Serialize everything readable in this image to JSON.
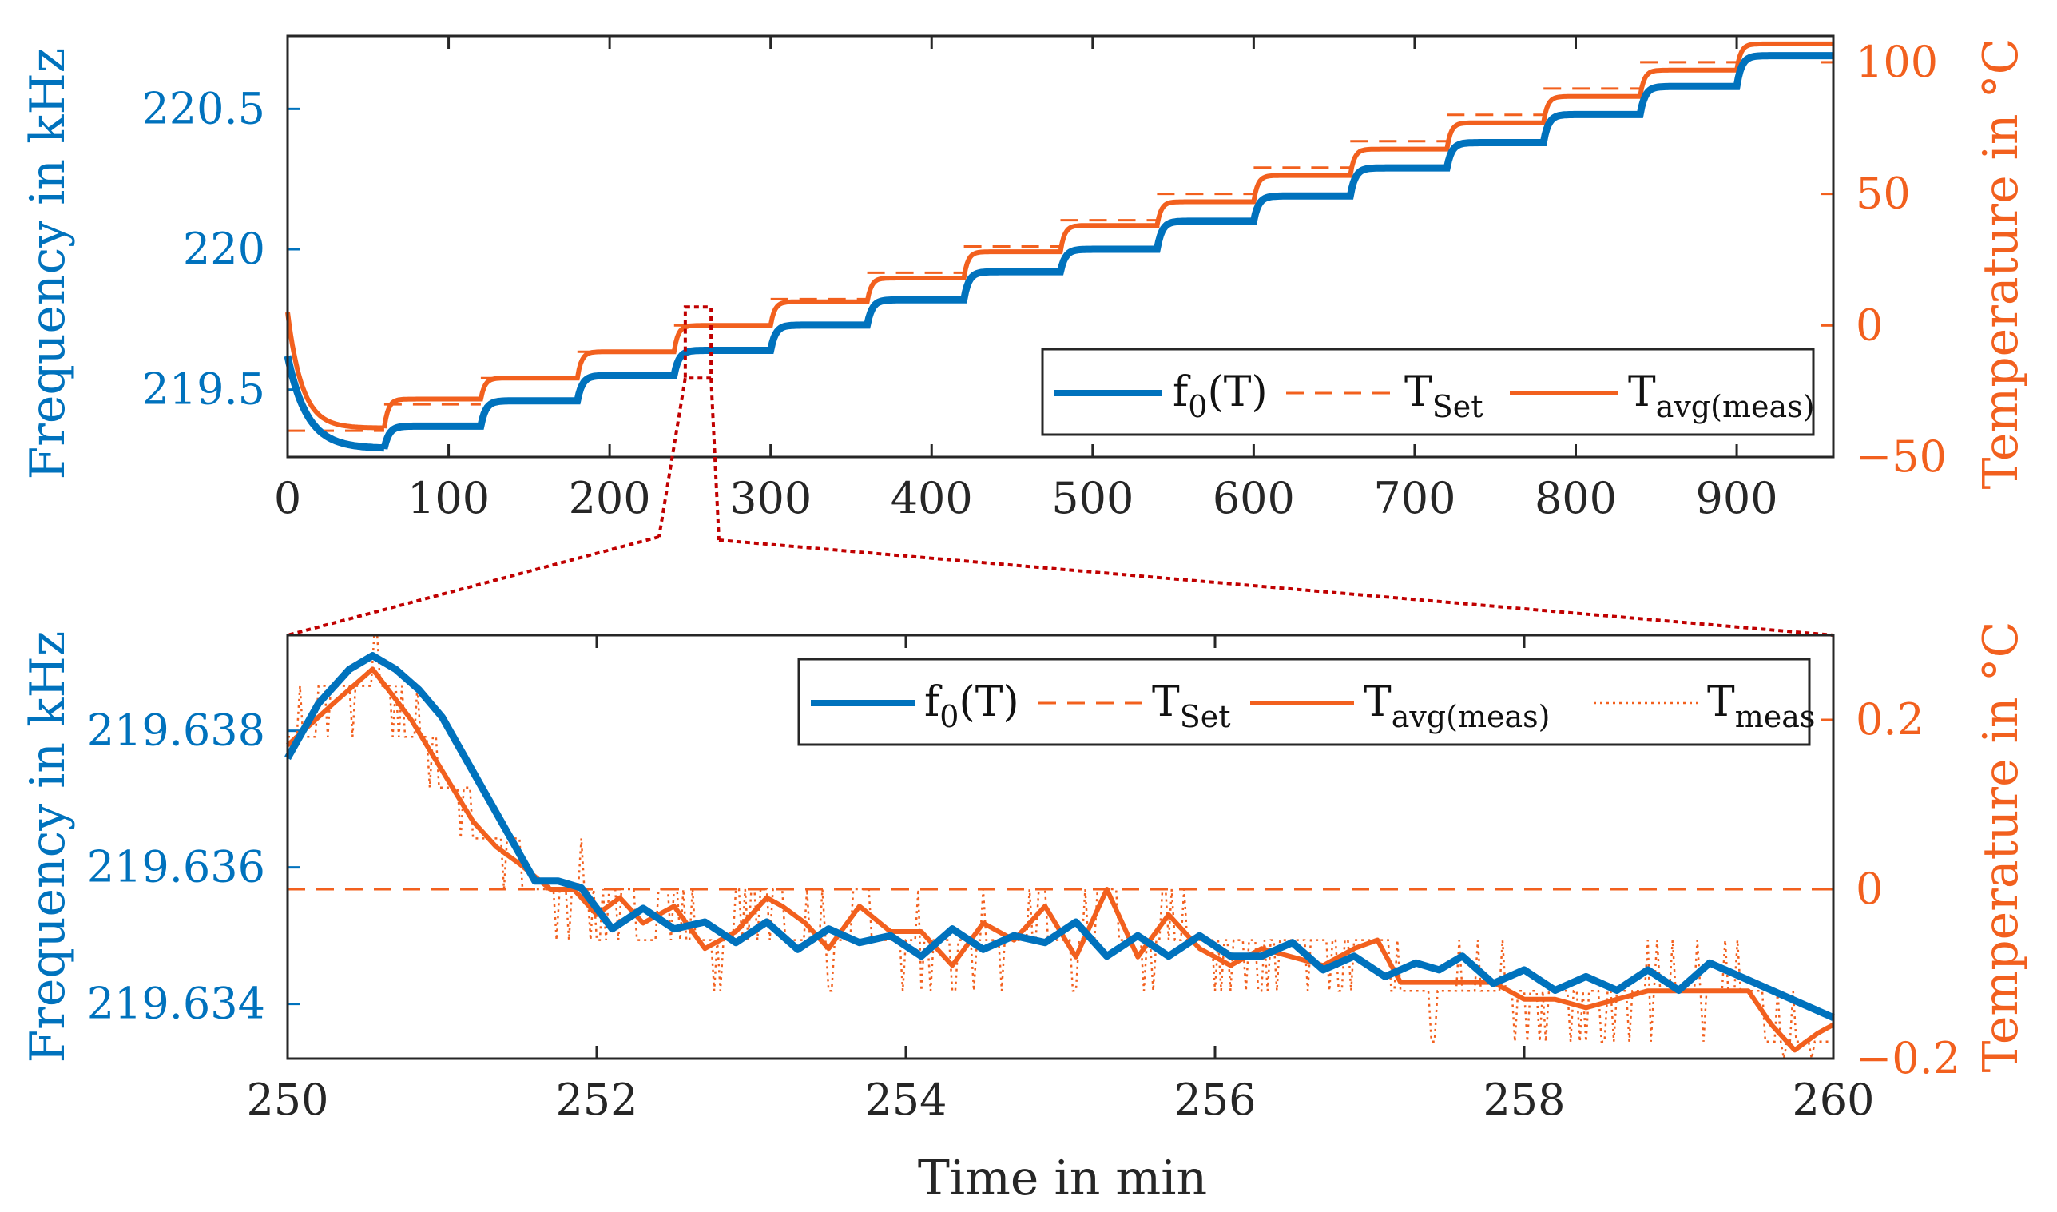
{
  "colors": {
    "freq": "#0072BD",
    "temp": "#F2601E",
    "zoom_box": "#C00000",
    "axis": "#262626"
  },
  "chart_data": [
    {
      "type": "line",
      "title": "",
      "xlabel": "",
      "ylabel": "Frequency in kHz",
      "ylabel_right": "Temperature in °C",
      "xlim": [
        0,
        960
      ],
      "ylim": [
        219.26,
        220.76
      ],
      "ylim_right": [
        -50,
        110
      ],
      "xticks": [
        "0",
        "100",
        "200",
        "300",
        "400",
        "500",
        "600",
        "700",
        "800",
        "900"
      ],
      "yticks": [
        "219.5",
        "220",
        "220.5"
      ],
      "yticks_right": [
        "−50",
        "0",
        "50",
        "100"
      ],
      "legend_position": "bottom-right",
      "legend": {
        "f0": {
          "main": "f",
          "sub": "0",
          "tail": "(T)"
        },
        "tset": {
          "main": "T",
          "sub": "Set"
        },
        "tavg": {
          "main": "T",
          "sub": "avg(meas)"
        }
      },
      "series": [
        {
          "name": "T_Set",
          "axis": "right",
          "style": "dashed",
          "steps_x": [
            0,
            60,
            120,
            180,
            240,
            300,
            360,
            420,
            480,
            540,
            600,
            660,
            720,
            780,
            840,
            900,
            960
          ],
          "steps_y": [
            -40,
            -30,
            -20,
            -10,
            0,
            10,
            20,
            30,
            40,
            50,
            60,
            70,
            80,
            90,
            100,
            110
          ]
        },
        {
          "name": "T_avg(meas)",
          "axis": "right",
          "style": "solid",
          "steps_x": [
            0,
            60,
            120,
            180,
            240,
            300,
            360,
            420,
            480,
            540,
            600,
            660,
            720,
            780,
            840,
            900,
            960
          ],
          "steps_y": [
            -39,
            -28,
            -20,
            -10,
            0,
            9,
            18,
            28,
            38,
            47,
            57,
            67,
            77,
            87,
            97,
            107
          ]
        },
        {
          "name": "f0(T)",
          "axis": "left",
          "style": "solid",
          "steps_x": [
            0,
            60,
            120,
            180,
            240,
            300,
            360,
            420,
            480,
            540,
            600,
            660,
            720,
            780,
            840,
            900,
            960
          ],
          "steps_y": [
            219.29,
            219.37,
            219.46,
            219.55,
            219.64,
            219.73,
            219.82,
            219.92,
            220.0,
            220.1,
            220.19,
            220.29,
            220.38,
            220.48,
            220.58,
            220.69
          ]
        }
      ]
    },
    {
      "type": "line",
      "title": "",
      "xlabel": "Time in min",
      "ylabel": "Frequency in kHz",
      "ylabel_right": "Temperature in °C",
      "xlim": [
        250,
        260
      ],
      "ylim": [
        219.6332,
        219.6394
      ],
      "ylim_right": [
        -0.2,
        0.3
      ],
      "xticks": [
        "250",
        "252",
        "254",
        "256",
        "258",
        "260"
      ],
      "yticks": [
        "219.634",
        "219.636",
        "219.638"
      ],
      "yticks_right": [
        "−0.2",
        "0",
        "0.2"
      ],
      "legend_position": "top-right",
      "legend": {
        "f0": {
          "main": "f",
          "sub": "0",
          "tail": "(T)"
        },
        "tset": {
          "main": "T",
          "sub": "Set"
        },
        "tavg": {
          "main": "T",
          "sub": "avg(meas)"
        },
        "tmeas": {
          "main": "T",
          "sub": "meas"
        }
      },
      "series": [
        {
          "name": "T_Set",
          "axis": "right",
          "style": "dashed",
          "x": [
            250,
            260
          ],
          "y": [
            0,
            0
          ]
        },
        {
          "name": "T_avg(meas)",
          "axis": "right",
          "style": "solid",
          "x": [
            250.0,
            250.3,
            250.55,
            250.8,
            251.0,
            251.2,
            251.35,
            251.5,
            251.7,
            251.85,
            252.0,
            252.15,
            252.3,
            252.5,
            252.7,
            252.9,
            253.1,
            253.2,
            253.35,
            253.5,
            253.7,
            253.9,
            254.1,
            254.3,
            254.5,
            254.7,
            254.9,
            255.1,
            255.3,
            255.5,
            255.7,
            255.9,
            256.1,
            256.3,
            256.5,
            256.7,
            256.9,
            257.05,
            257.2,
            257.5,
            257.8,
            258.0,
            258.2,
            258.4,
            258.6,
            258.8,
            259.0,
            259.2,
            259.45,
            259.6,
            259.75,
            259.9,
            260.0
          ],
          "y": [
            0.17,
            0.22,
            0.26,
            0.2,
            0.14,
            0.08,
            0.05,
            0.03,
            0.0,
            0.0,
            -0.03,
            -0.01,
            -0.04,
            -0.02,
            -0.07,
            -0.05,
            -0.01,
            -0.02,
            -0.04,
            -0.07,
            -0.02,
            -0.05,
            -0.05,
            -0.09,
            -0.04,
            -0.06,
            -0.02,
            -0.08,
            0.0,
            -0.08,
            -0.03,
            -0.07,
            -0.09,
            -0.07,
            -0.08,
            -0.09,
            -0.07,
            -0.06,
            -0.11,
            -0.11,
            -0.11,
            -0.13,
            -0.13,
            -0.14,
            -0.13,
            -0.12,
            -0.12,
            -0.12,
            -0.12,
            -0.16,
            -0.19,
            -0.17,
            -0.16
          ]
        },
        {
          "name": "f0(T)",
          "axis": "left",
          "style": "solid",
          "x": [
            250.0,
            250.2,
            250.4,
            250.55,
            250.7,
            250.85,
            251.0,
            251.15,
            251.3,
            251.45,
            251.6,
            251.75,
            251.9,
            252.1,
            252.3,
            252.5,
            252.7,
            252.9,
            253.1,
            253.3,
            253.5,
            253.7,
            253.9,
            254.1,
            254.3,
            254.5,
            254.7,
            254.9,
            255.1,
            255.3,
            255.5,
            255.7,
            255.9,
            256.1,
            256.3,
            256.5,
            256.7,
            256.9,
            257.1,
            257.3,
            257.45,
            257.6,
            257.8,
            258.0,
            258.2,
            258.4,
            258.6,
            258.8,
            259.0,
            259.2,
            259.4,
            259.6,
            259.8,
            260.0
          ],
          "y": [
            219.6376,
            219.6384,
            219.6389,
            219.6391,
            219.6389,
            219.6386,
            219.6382,
            219.6376,
            219.637,
            219.6364,
            219.6358,
            219.6358,
            219.6357,
            219.6351,
            219.6354,
            219.6351,
            219.6352,
            219.6349,
            219.6352,
            219.6348,
            219.6351,
            219.6349,
            219.635,
            219.6347,
            219.6351,
            219.6348,
            219.635,
            219.6349,
            219.6352,
            219.6347,
            219.635,
            219.6347,
            219.635,
            219.6347,
            219.6347,
            219.6349,
            219.6345,
            219.6347,
            219.6344,
            219.6346,
            219.6345,
            219.6347,
            219.6343,
            219.6345,
            219.6342,
            219.6344,
            219.6342,
            219.6345,
            219.6342,
            219.6346,
            219.6344,
            219.6342,
            219.634,
            219.6338
          ]
        },
        {
          "name": "T_meas",
          "axis": "right",
          "style": "dotted",
          "generated_like": "T_avg(meas)",
          "noise_amplitude": 0.05
        }
      ]
    }
  ],
  "zoom_region": {
    "x_from": 250,
    "x_to": 260
  }
}
